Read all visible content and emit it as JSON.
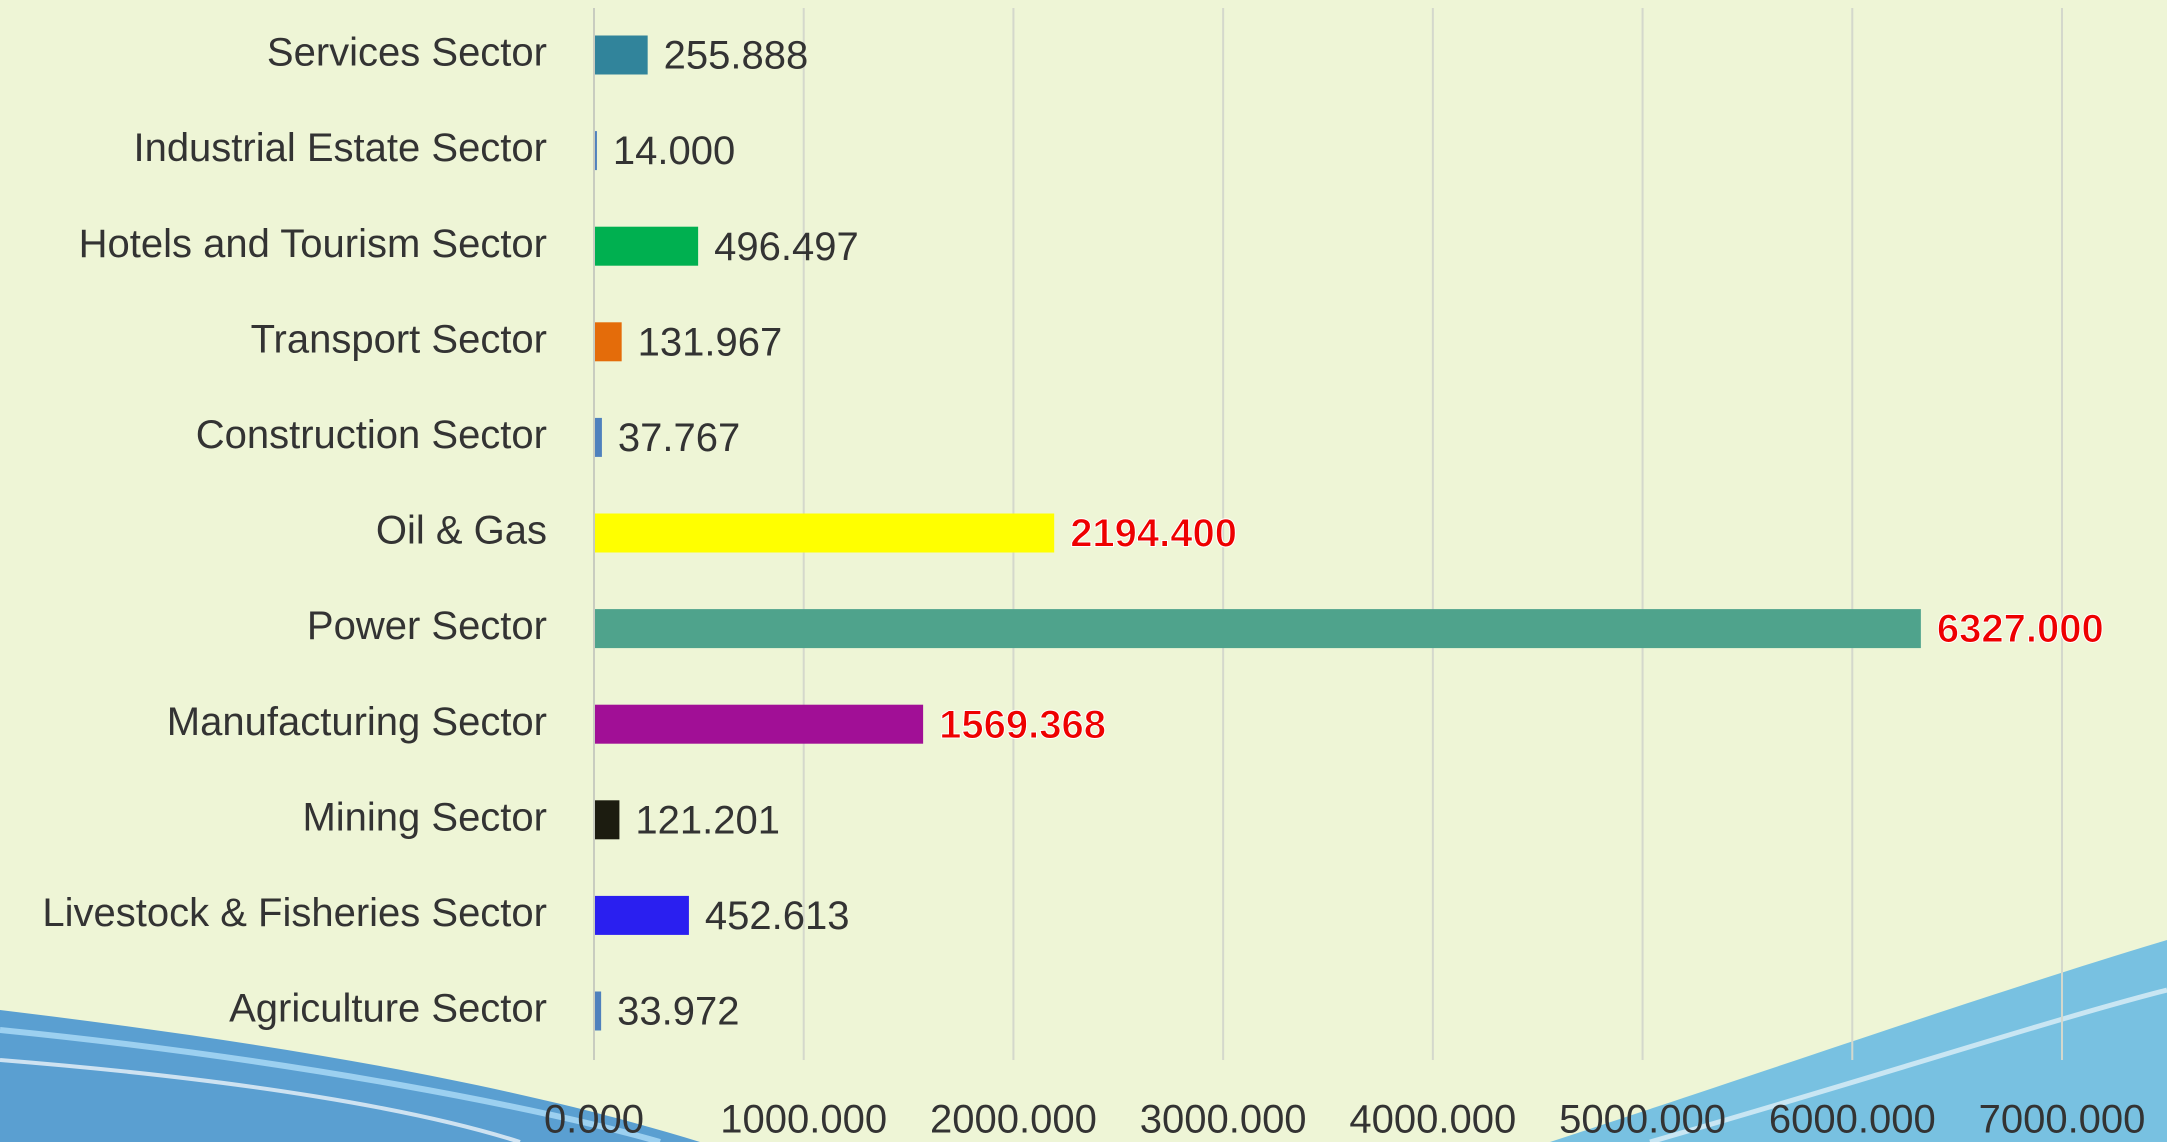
{
  "chart_data": {
    "type": "barh",
    "categories": [
      "Services Sector",
      "Industrial Estate Sector",
      "Hotels and Tourism Sector",
      "Transport Sector",
      "Construction Sector",
      "Oil & Gas",
      "Power Sector",
      "Manufacturing Sector",
      "Mining Sector",
      "Livestock & Fisheries Sector",
      "Agriculture Sector"
    ],
    "values": [
      255.888,
      14,
      496.497,
      131.967,
      37.767,
      2194.4,
      6327,
      1569.368,
      121.201,
      452.613,
      33.972
    ],
    "value_labels": [
      "255.888",
      "14.000",
      "496.497",
      "131.967",
      "37.767",
      "2194.400",
      "6327.000",
      "1569.368",
      "121.201",
      "452.613",
      "33.972"
    ],
    "colors": [
      "#31849b",
      "#4f81bd",
      "#00b050",
      "#e46c0a",
      "#4f81bd",
      "#ffff00",
      "#4fa38c",
      "#a10f96",
      "#1c1c10",
      "#2a1ff0",
      "#4f81bd"
    ],
    "label_colors": [
      "#333333",
      "#333333",
      "#333333",
      "#333333",
      "#333333",
      "#ee0000",
      "#ee0000",
      "#ee0000",
      "#333333",
      "#333333",
      "#333333"
    ],
    "xlim": [
      0,
      7000
    ],
    "xticks": [
      {
        "value": 0,
        "label": "0.000"
      },
      {
        "value": 1000,
        "label": "1000.000"
      },
      {
        "value": 2000,
        "label": "2000.000"
      },
      {
        "value": 3000,
        "label": "3000.000"
      },
      {
        "value": 4000,
        "label": "4000.000"
      },
      {
        "value": 5000,
        "label": "5000.000"
      },
      {
        "value": 6000,
        "label": "6000.000"
      },
      {
        "value": 7000,
        "label": "7000.000"
      }
    ],
    "grid": true
  }
}
